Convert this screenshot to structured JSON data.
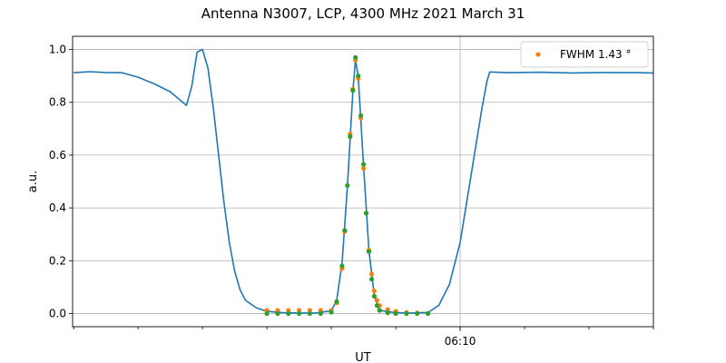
{
  "chart_data": {
    "type": "line",
    "title": "Antenna N3007, LCP, 4300 MHz 2021 March 31",
    "xlabel": "UT",
    "ylabel": "a.u.",
    "x_ticks": [
      {
        "x": "06:10",
        "label": "06:10"
      }
    ],
    "xlim": [
      "05:57:58",
      "06:16:00"
    ],
    "ylim": [
      -0.05,
      1.05
    ],
    "y_ticks": [
      0.0,
      0.2,
      0.4,
      0.6,
      0.8,
      1.0
    ],
    "grid": true,
    "legend_position": "top-right",
    "series": [
      {
        "name": "",
        "color": "#1f77b4",
        "style": "line",
        "points": [
          [
            "05:58:00",
            0.912
          ],
          [
            "05:58:30",
            0.916
          ],
          [
            "05:59:00",
            0.913
          ],
          [
            "05:59:30",
            0.912
          ],
          [
            "06:00:00",
            0.895
          ],
          [
            "06:00:30",
            0.87
          ],
          [
            "06:01:00",
            0.84
          ],
          [
            "06:01:30",
            0.788
          ],
          [
            "06:01:40",
            0.86
          ],
          [
            "06:01:50",
            0.99
          ],
          [
            "06:02:00",
            1.0
          ],
          [
            "06:02:10",
            0.93
          ],
          [
            "06:02:20",
            0.78
          ],
          [
            "06:02:30",
            0.6
          ],
          [
            "06:02:40",
            0.42
          ],
          [
            "06:02:50",
            0.27
          ],
          [
            "06:03:00",
            0.16
          ],
          [
            "06:03:10",
            0.09
          ],
          [
            "06:03:20",
            0.05
          ],
          [
            "06:03:40",
            0.022
          ],
          [
            "06:04:00",
            0.008
          ],
          [
            "06:04:30",
            0.003
          ],
          [
            "06:05:00",
            0.002
          ],
          [
            "06:05:30",
            0.002
          ],
          [
            "06:06:00",
            0.01
          ],
          [
            "06:06:10",
            0.05
          ],
          [
            "06:06:20",
            0.19
          ],
          [
            "06:06:30",
            0.48
          ],
          [
            "06:06:40",
            0.84
          ],
          [
            "06:06:45",
            0.96
          ],
          [
            "06:06:50",
            0.9
          ],
          [
            "06:07:00",
            0.56
          ],
          [
            "06:07:10",
            0.24
          ],
          [
            "06:07:20",
            0.07
          ],
          [
            "06:07:30",
            0.012
          ],
          [
            "06:08:00",
            0.003
          ],
          [
            "06:08:30",
            0.002
          ],
          [
            "06:09:00",
            0.004
          ],
          [
            "06:09:20",
            0.03
          ],
          [
            "06:09:40",
            0.11
          ],
          [
            "06:10:00",
            0.27
          ],
          [
            "06:10:20",
            0.52
          ],
          [
            "06:10:40",
            0.77
          ],
          [
            "06:10:50",
            0.88
          ],
          [
            "06:10:55",
            0.915
          ],
          [
            "06:11:30",
            0.912
          ],
          [
            "06:12:30",
            0.914
          ],
          [
            "06:13:30",
            0.911
          ],
          [
            "06:14:30",
            0.913
          ],
          [
            "06:15:30",
            0.912
          ],
          [
            "06:16:00",
            0.911
          ]
        ]
      },
      {
        "name": "FWHM 1.43 °",
        "color": "#ff7f0e",
        "style": "markers",
        "points": [
          [
            "06:04:00",
            0.012
          ],
          [
            "06:04:20",
            0.012
          ],
          [
            "06:04:40",
            0.012
          ],
          [
            "06:05:00",
            0.012
          ],
          [
            "06:05:20",
            0.012
          ],
          [
            "06:05:40",
            0.012
          ],
          [
            "06:06:00",
            0.012
          ],
          [
            "06:06:10",
            0.04
          ],
          [
            "06:06:20",
            0.17
          ],
          [
            "06:06:25",
            0.31
          ],
          [
            "06:06:35",
            0.68
          ],
          [
            "06:06:40",
            0.85
          ],
          [
            "06:06:45",
            0.96
          ],
          [
            "06:06:50",
            0.89
          ],
          [
            "06:06:55",
            0.74
          ],
          [
            "06:07:00",
            0.55
          ],
          [
            "06:07:05",
            0.38
          ],
          [
            "06:07:10",
            0.24
          ],
          [
            "06:07:15",
            0.15
          ],
          [
            "06:07:20",
            0.085
          ],
          [
            "06:07:25",
            0.05
          ],
          [
            "06:07:30",
            0.03
          ],
          [
            "06:07:45",
            0.015
          ],
          [
            "06:08:00",
            0.008
          ],
          [
            "06:08:20",
            0.004
          ],
          [
            "06:08:40",
            0.002
          ],
          [
            "06:09:00",
            0.001
          ]
        ]
      },
      {
        "name": "",
        "color": "#2ca02c",
        "style": "markers",
        "points": [
          [
            "06:04:00",
            0.0
          ],
          [
            "06:04:20",
            0.0
          ],
          [
            "06:04:40",
            0.0
          ],
          [
            "06:05:00",
            0.0
          ],
          [
            "06:05:20",
            0.0
          ],
          [
            "06:05:40",
            0.0
          ],
          [
            "06:06:00",
            0.005
          ],
          [
            "06:06:10",
            0.045
          ],
          [
            "06:06:20",
            0.18
          ],
          [
            "06:06:25",
            0.315
          ],
          [
            "06:06:30",
            0.485
          ],
          [
            "06:06:35",
            0.67
          ],
          [
            "06:06:40",
            0.845
          ],
          [
            "06:06:45",
            0.97
          ],
          [
            "06:06:50",
            0.9
          ],
          [
            "06:06:55",
            0.75
          ],
          [
            "06:07:00",
            0.565
          ],
          [
            "06:07:05",
            0.38
          ],
          [
            "06:07:10",
            0.235
          ],
          [
            "06:07:15",
            0.13
          ],
          [
            "06:07:20",
            0.065
          ],
          [
            "06:07:25",
            0.03
          ],
          [
            "06:07:30",
            0.012
          ],
          [
            "06:07:45",
            0.003
          ],
          [
            "06:08:00",
            0.0
          ],
          [
            "06:08:20",
            0.0
          ],
          [
            "06:08:40",
            0.0
          ],
          [
            "06:09:00",
            0.0
          ]
        ]
      }
    ]
  }
}
